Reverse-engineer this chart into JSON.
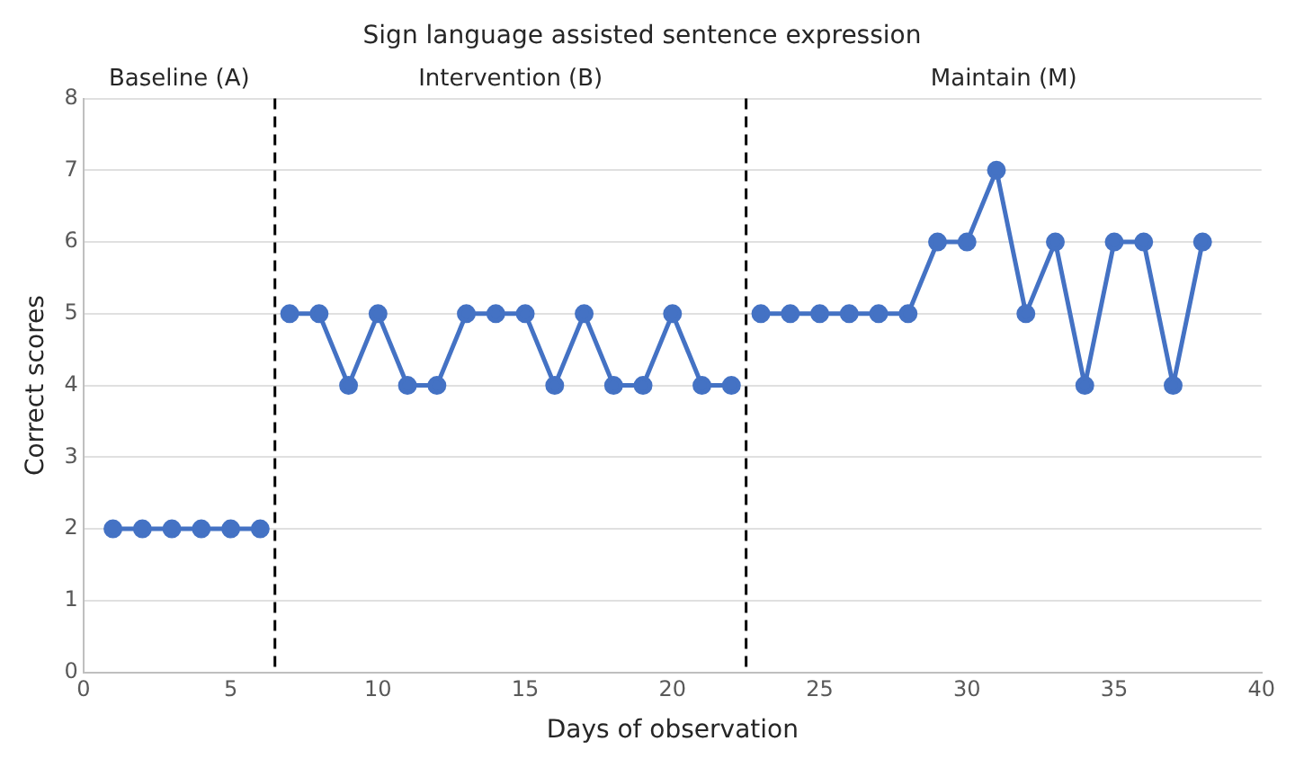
{
  "chart_data": {
    "type": "line",
    "title": "Sign language assisted sentence expression",
    "xlabel": "Days of observation",
    "ylabel": "Correct scores",
    "series": [
      {
        "color": "#4472c4",
        "x": [
          1,
          2,
          3,
          4,
          5,
          6
        ],
        "values": [
          2,
          2,
          2,
          2,
          2,
          2
        ]
      },
      {
        "color": "#4472c4",
        "x": [
          7,
          8,
          9,
          10,
          11,
          12,
          13,
          14,
          15,
          16,
          17,
          18,
          19,
          20,
          21,
          22
        ],
        "values": [
          5,
          5,
          4,
          5,
          4,
          4,
          5,
          5,
          5,
          4,
          5,
          4,
          4,
          5,
          4,
          4
        ]
      },
      {
        "color": "#4472c4",
        "x": [
          23,
          24,
          25,
          26,
          27,
          28,
          29,
          30,
          31,
          32,
          33,
          34,
          35,
          36,
          37,
          38
        ],
        "values": [
          5,
          5,
          5,
          5,
          5,
          5,
          6,
          6,
          7,
          5,
          6,
          4,
          6,
          6,
          4,
          6
        ]
      }
    ],
    "xlim": [
      0,
      40
    ],
    "xticks": [
      0,
      5,
      10,
      15,
      20,
      25,
      30,
      35,
      40
    ],
    "ylim": [
      0,
      8
    ],
    "yticks": [
      0,
      1,
      2,
      3,
      4,
      5,
      6,
      7,
      8
    ],
    "ref_lines": [
      {
        "axis": "x",
        "value": 6.5,
        "color": "#000000",
        "line_style": "dashed"
      },
      {
        "axis": "x",
        "value": 22.5,
        "color": "#000000",
        "line_style": "dashed"
      }
    ],
    "annotations": [
      "Baseline (A)",
      "Intervention (B)",
      "Maintain (M)"
    ],
    "grid": "y",
    "legend": false,
    "marker": "circle",
    "line_style": "solid"
  }
}
